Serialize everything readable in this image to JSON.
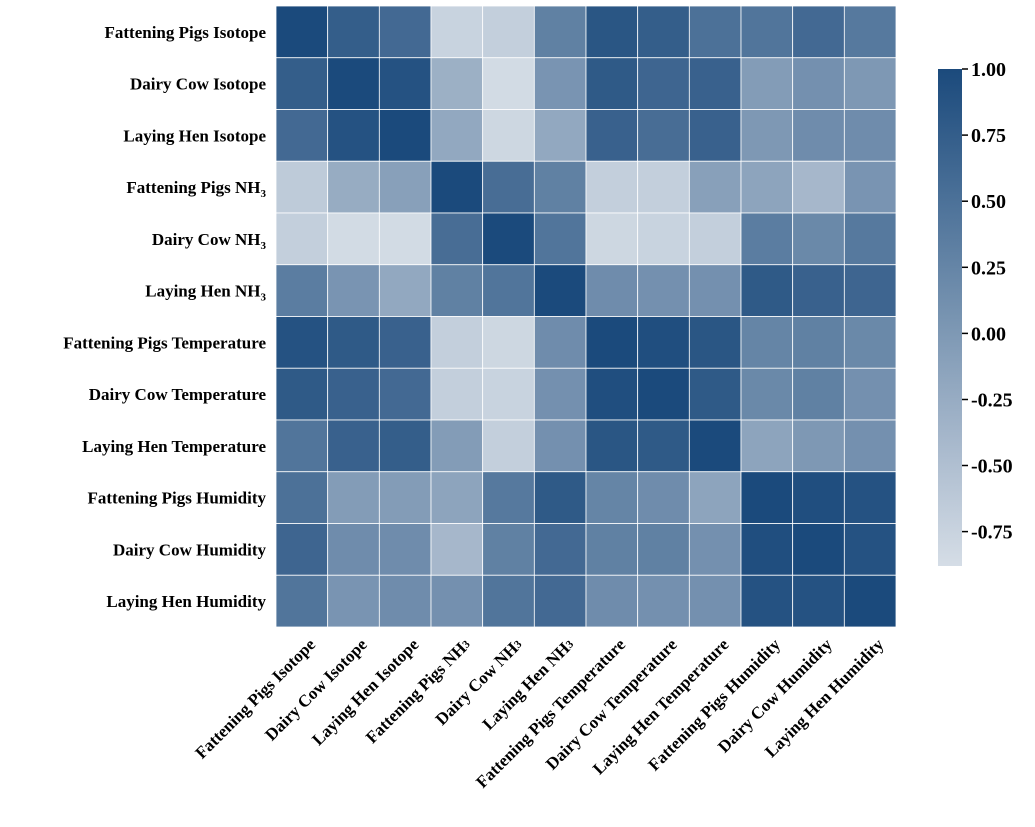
{
  "chart_data": {
    "type": "heatmap",
    "rows": [
      "Fattening Pigs Isotope",
      "Dairy Cow Isotope",
      "Laying Hen Isotope",
      "Fattening Pigs NH3",
      "Dairy Cow NH3",
      "Laying Hen NH3",
      "Fattening Pigs Temperature",
      "Dairy Cow Temperature",
      "Laying Hen Temperature",
      "Fattening Pigs Humidity",
      "Dairy Cow Humidity",
      "Laying Hen Humidity"
    ],
    "columns": [
      "Fattening Pigs Isotope",
      "Dairy Cow Isotope",
      "Laying Hen Isotope",
      "Fattening Pigs NH3",
      "Dairy Cow NH3",
      "Laying Hen NH3",
      "Fattening Pigs Temperature",
      "Dairy Cow Temperature",
      "Laying Hen Temperature",
      "Fattening Pigs Humidity",
      "Dairy Cow Humidity",
      "Laying Hen Humidity"
    ],
    "values": [
      [
        1.0,
        0.75,
        0.6,
        -0.75,
        -0.7,
        0.3,
        0.85,
        0.75,
        0.5,
        0.45,
        0.6,
        0.4
      ],
      [
        0.75,
        1.0,
        0.9,
        -0.3,
        -0.85,
        0.05,
        0.8,
        0.65,
        0.7,
        -0.05,
        0.1,
        0.0
      ],
      [
        0.6,
        0.9,
        1.0,
        -0.2,
        -0.8,
        -0.2,
        0.7,
        0.55,
        0.7,
        0.0,
        0.15,
        0.15
      ],
      [
        -0.65,
        -0.25,
        -0.1,
        1.0,
        0.55,
        0.3,
        -0.7,
        -0.7,
        -0.1,
        -0.15,
        -0.4,
        0.05
      ],
      [
        -0.7,
        -0.85,
        -0.85,
        0.55,
        1.0,
        0.45,
        -0.8,
        -0.75,
        -0.7,
        0.35,
        0.2,
        0.4
      ],
      [
        0.35,
        0.05,
        -0.2,
        0.3,
        0.45,
        1.0,
        0.15,
        0.1,
        0.1,
        0.8,
        0.7,
        0.65
      ],
      [
        0.9,
        0.8,
        0.7,
        -0.7,
        -0.8,
        0.15,
        1.0,
        0.95,
        0.85,
        0.25,
        0.3,
        0.2
      ],
      [
        0.8,
        0.7,
        0.6,
        -0.7,
        -0.75,
        0.1,
        0.95,
        1.0,
        0.8,
        0.2,
        0.3,
        0.1
      ],
      [
        0.45,
        0.7,
        0.75,
        -0.05,
        -0.7,
        0.1,
        0.85,
        0.8,
        1.0,
        -0.15,
        0.0,
        0.1
      ],
      [
        0.5,
        -0.05,
        -0.05,
        -0.15,
        0.4,
        0.8,
        0.25,
        0.15,
        -0.15,
        1.0,
        0.95,
        0.9
      ],
      [
        0.65,
        0.15,
        0.15,
        -0.4,
        0.3,
        0.6,
        0.3,
        0.3,
        0.1,
        0.95,
        1.0,
        0.9
      ],
      [
        0.45,
        0.05,
        0.15,
        0.1,
        0.45,
        0.6,
        0.15,
        0.1,
        0.1,
        0.9,
        0.9,
        1.0
      ]
    ],
    "colorbar": {
      "ticks": [
        "1.00",
        "0.75",
        "0.50",
        "0.25",
        "0.00",
        "-0.25",
        "-0.50",
        "-0.75"
      ],
      "tick_values": [
        1.0,
        0.75,
        0.5,
        0.25,
        0.0,
        -0.25,
        -0.5,
        -0.75
      ],
      "range": [
        -0.88,
        1.0
      ]
    },
    "colors": {
      "high": "#1b4a7c",
      "low": "#d5dde6"
    },
    "grid_lines": "white"
  }
}
